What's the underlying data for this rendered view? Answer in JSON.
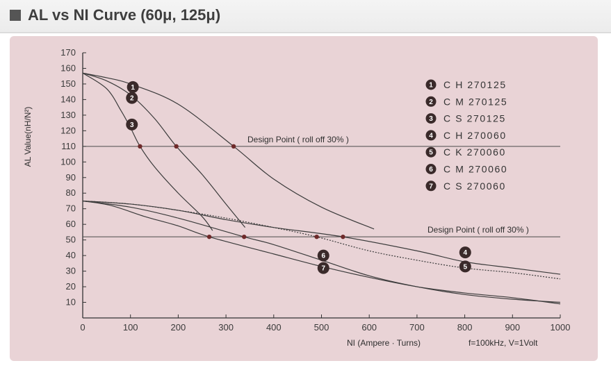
{
  "title": "AL vs NI Curve (60μ, 125μ)",
  "chart_data": {
    "type": "line",
    "title": "AL vs NI Curve (60μ, 125μ)",
    "xlabel": "NI (Ampere · Turns)",
    "ylabel": "AL Value(nH/N²)",
    "condition": "f=100kHz, V=1Volt",
    "xlim": [
      0,
      1000
    ],
    "ylim": [
      0,
      170
    ],
    "x_ticks": [
      0,
      100,
      200,
      300,
      400,
      500,
      600,
      700,
      800,
      900,
      1000
    ],
    "y_ticks": [
      10,
      20,
      30,
      40,
      50,
      60,
      70,
      80,
      90,
      100,
      110,
      120,
      130,
      140,
      150,
      160,
      170
    ],
    "grid": false,
    "legend_position": "top-right",
    "reference_lines": [
      {
        "y": 110,
        "label": "Design Point ( roll off 30% )",
        "label_x": 345
      },
      {
        "y": 52,
        "label": "Design Point ( roll off 30% )",
        "label_x": 722
      }
    ],
    "series": [
      {
        "name": "C H 270125",
        "marker": "1",
        "marker_at": [
          105,
          148
        ],
        "dash": false,
        "points": [
          [
            0,
            157
          ],
          [
            50,
            154
          ],
          [
            100,
            150
          ],
          [
            200,
            137
          ],
          [
            316,
            110
          ],
          [
            400,
            89
          ],
          [
            500,
            71
          ],
          [
            610,
            57
          ]
        ]
      },
      {
        "name": "C M 270125",
        "marker": "2",
        "marker_at": [
          103,
          141
        ],
        "dash": false,
        "points": [
          [
            0,
            157
          ],
          [
            50,
            152
          ],
          [
            100,
            143
          ],
          [
            150,
            128
          ],
          [
            196,
            110
          ],
          [
            250,
            92
          ],
          [
            300,
            73
          ],
          [
            340,
            58
          ]
        ]
      },
      {
        "name": "C S 270125",
        "marker": "3",
        "marker_at": [
          103,
          124
        ],
        "dash": false,
        "points": [
          [
            0,
            157
          ],
          [
            50,
            147
          ],
          [
            80,
            133
          ],
          [
            100,
            122
          ],
          [
            120,
            110
          ],
          [
            150,
            97
          ],
          [
            200,
            80
          ],
          [
            250,
            65
          ],
          [
            272,
            56
          ]
        ]
      },
      {
        "name": "C H 270060",
        "marker": "4",
        "marker_at": [
          801,
          42
        ],
        "dash": false,
        "points": [
          [
            0,
            75
          ],
          [
            100,
            73
          ],
          [
            200,
            69
          ],
          [
            300,
            63
          ],
          [
            400,
            58
          ],
          [
            545,
            52
          ],
          [
            700,
            43
          ],
          [
            800,
            36
          ],
          [
            900,
            32
          ],
          [
            1000,
            28
          ]
        ]
      },
      {
        "name": "C K 270060",
        "marker": "5",
        "marker_at": [
          801,
          33
        ],
        "dash": true,
        "points": [
          [
            0,
            75
          ],
          [
            100,
            73
          ],
          [
            200,
            69
          ],
          [
            300,
            64
          ],
          [
            400,
            58
          ],
          [
            490,
            52
          ],
          [
            600,
            43
          ],
          [
            700,
            37
          ],
          [
            800,
            32
          ],
          [
            900,
            29
          ],
          [
            1000,
            25
          ]
        ]
      },
      {
        "name": "C M 270060",
        "marker": "6",
        "marker_at": [
          504,
          40
        ],
        "dash": false,
        "points": [
          [
            0,
            75
          ],
          [
            100,
            71
          ],
          [
            200,
            64
          ],
          [
            338,
            52
          ],
          [
            400,
            47
          ],
          [
            500,
            37
          ],
          [
            600,
            27
          ],
          [
            700,
            20
          ],
          [
            800,
            15
          ],
          [
            900,
            12
          ],
          [
            1000,
            10
          ]
        ]
      },
      {
        "name": "C S 270060",
        "marker": "7",
        "marker_at": [
          504,
          32
        ],
        "dash": false,
        "points": [
          [
            0,
            75
          ],
          [
            60,
            72
          ],
          [
            130,
            65
          ],
          [
            200,
            59
          ],
          [
            265,
            52
          ],
          [
            400,
            41
          ],
          [
            500,
            33
          ],
          [
            600,
            26
          ],
          [
            700,
            20
          ],
          [
            800,
            16
          ],
          [
            900,
            13
          ],
          [
            1000,
            9
          ]
        ]
      }
    ],
    "design_points": [
      [
        316,
        110
      ],
      [
        196,
        110
      ],
      [
        120,
        110
      ],
      [
        545,
        52
      ],
      [
        490,
        52
      ],
      [
        338,
        52
      ],
      [
        265,
        52
      ]
    ]
  }
}
